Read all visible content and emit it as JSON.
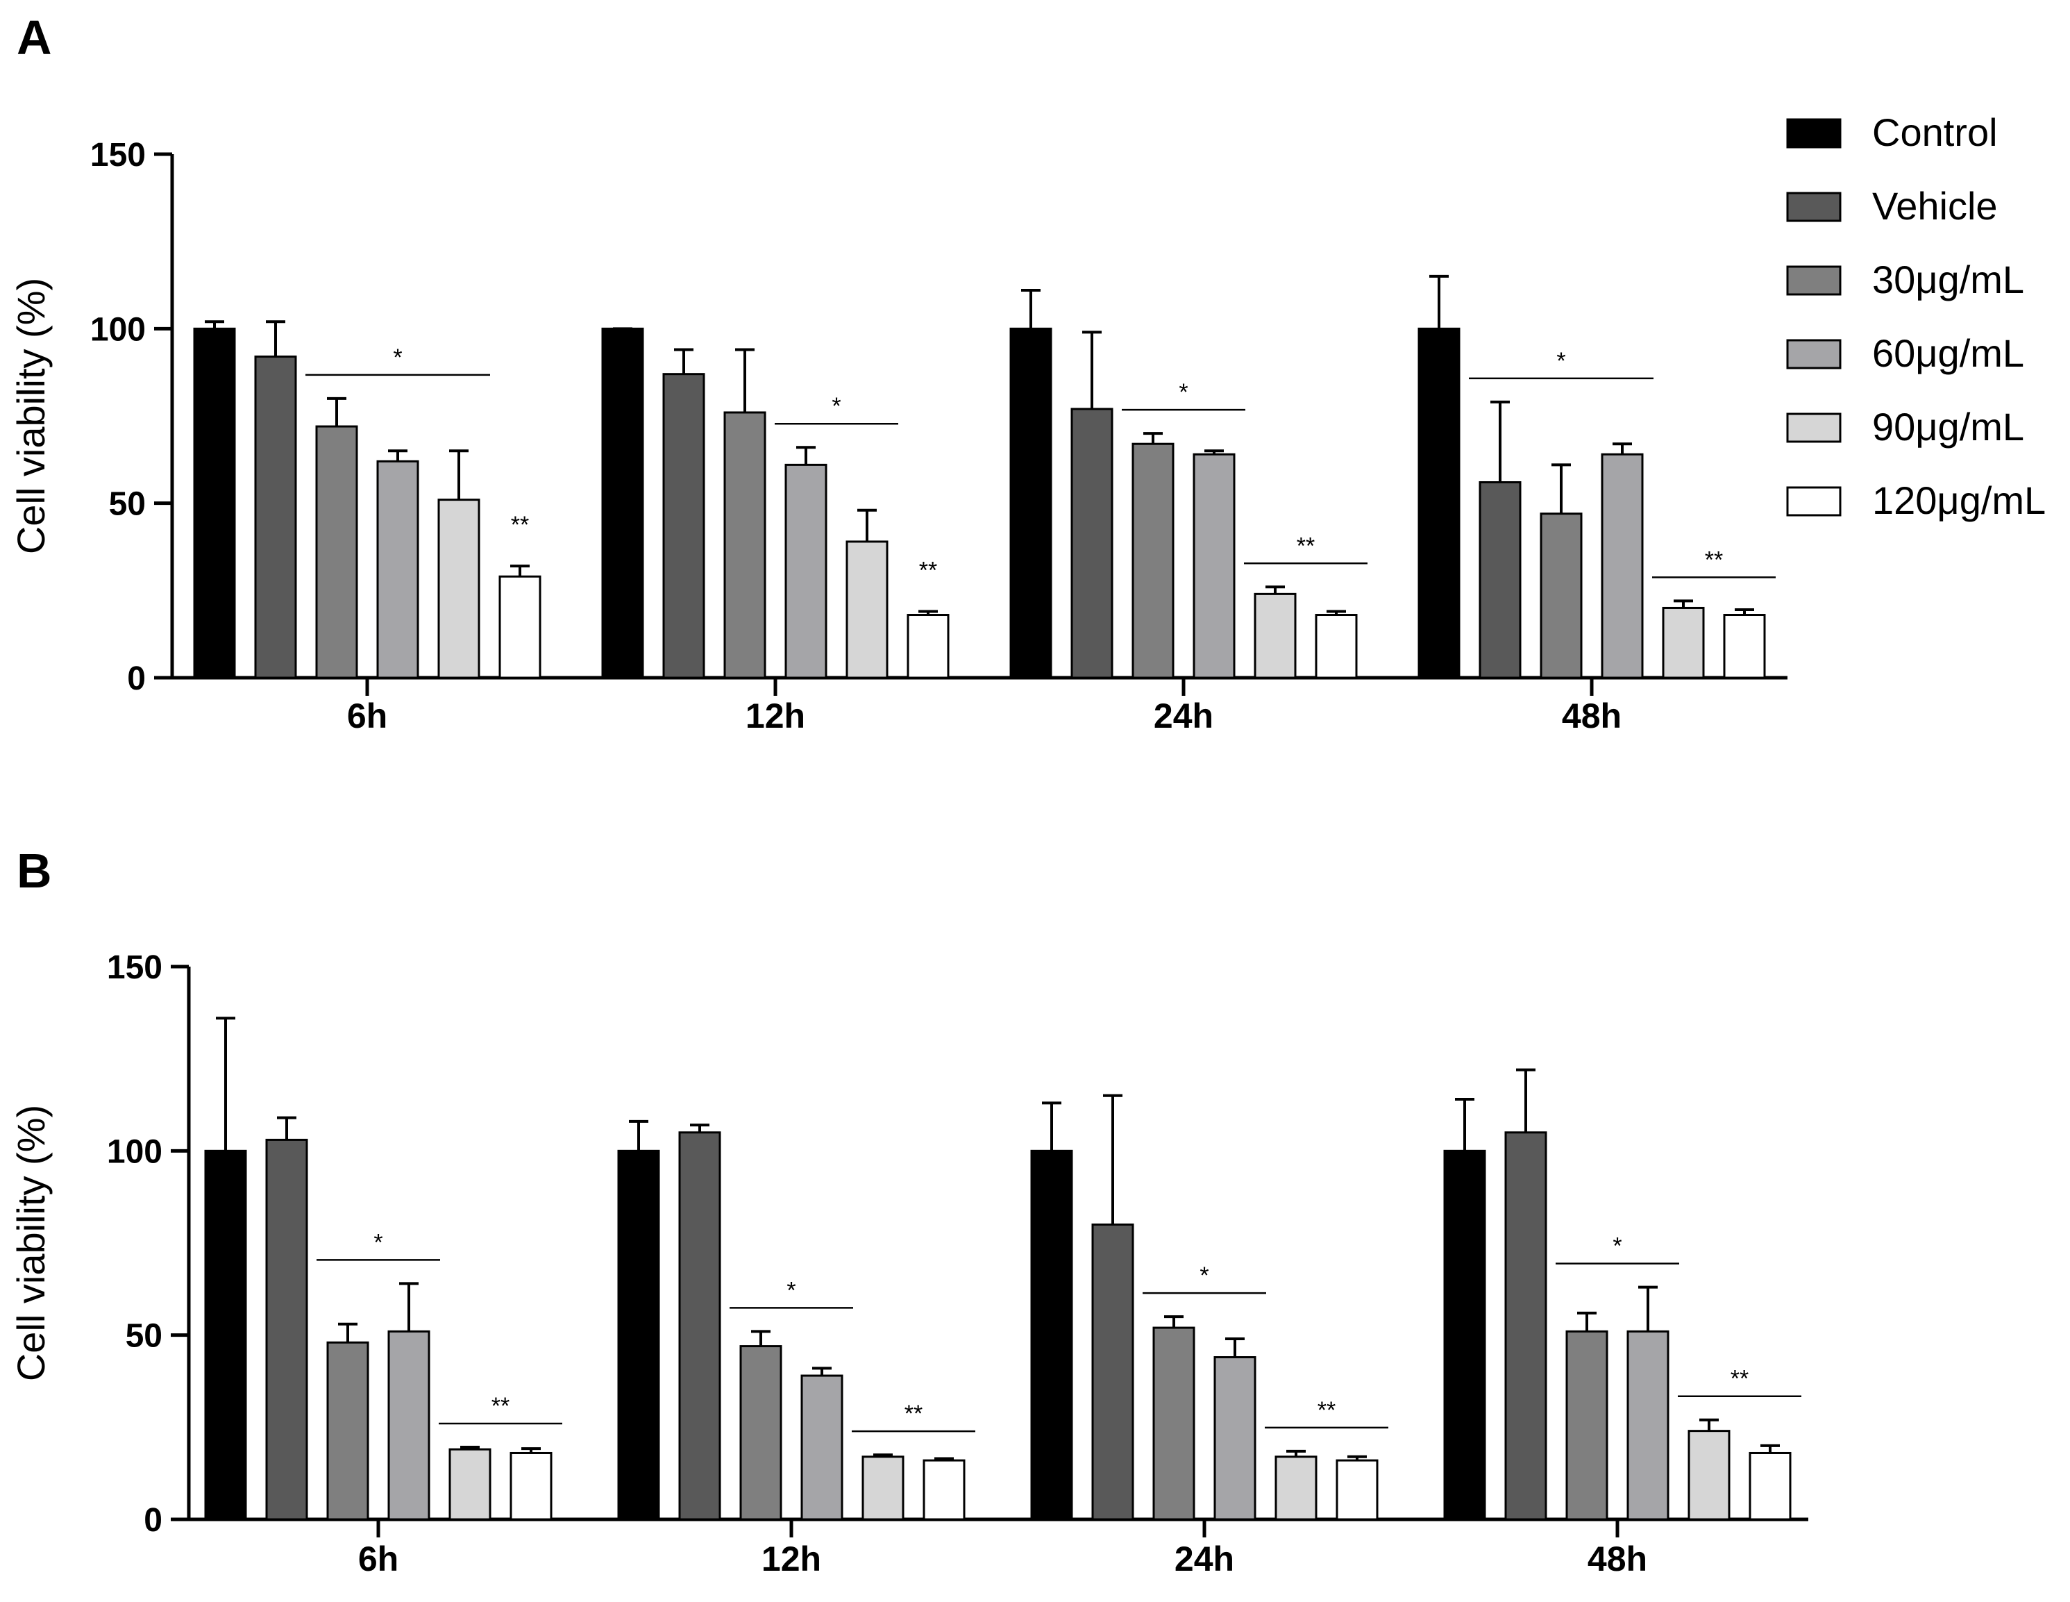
{
  "chart_data": [
    {
      "panel": "A",
      "type": "bar",
      "title": "",
      "xlabel": "",
      "ylabel": "Cell viability (%)",
      "ylim": [
        0,
        150
      ],
      "yticks": [
        0,
        50,
        100,
        150
      ],
      "categories": [
        "6h",
        "12h",
        "24h",
        "48h"
      ],
      "legend_position": "top-right",
      "series": [
        {
          "name": "Control",
          "color": "#000000",
          "values": [
            100,
            100,
            100,
            100
          ],
          "errors": [
            2,
            0,
            11,
            15
          ]
        },
        {
          "name": "Vehicle",
          "color": "#595959",
          "values": [
            92,
            87,
            77,
            56
          ],
          "errors": [
            10,
            7,
            22,
            23
          ]
        },
        {
          "name": "30μg/mL",
          "color": "#7f7f7f",
          "values": [
            72,
            76,
            67,
            47
          ],
          "errors": [
            8,
            18,
            3,
            14
          ]
        },
        {
          "name": "60μg/mL",
          "color": "#a5a5a8",
          "values": [
            62,
            61,
            64,
            64
          ],
          "errors": [
            3,
            5,
            1,
            3
          ]
        },
        {
          "name": "90μg/mL",
          "color": "#d6d6d6",
          "values": [
            51,
            39,
            24,
            20
          ],
          "errors": [
            14,
            9,
            2,
            2
          ]
        },
        {
          "name": "120μg/mL",
          "color": "#ffffff",
          "values": [
            29,
            18,
            18,
            18
          ],
          "errors": [
            3,
            1,
            1,
            1.5
          ]
        }
      ],
      "annotations": [
        {
          "label": "*",
          "category": "6h",
          "from": 2,
          "to": 4
        },
        {
          "label": "**",
          "category": "6h",
          "from": 5,
          "to": 5
        },
        {
          "label": "*",
          "category": "12h",
          "from": 3,
          "to": 4
        },
        {
          "label": "**",
          "category": "12h",
          "from": 5,
          "to": 5
        },
        {
          "label": "*",
          "category": "24h",
          "from": 2,
          "to": 3
        },
        {
          "label": "**",
          "category": "24h",
          "from": 4,
          "to": 5
        },
        {
          "label": "*",
          "category": "48h",
          "from": 1,
          "to": 3
        },
        {
          "label": "**",
          "category": "48h",
          "from": 4,
          "to": 5
        }
      ]
    },
    {
      "panel": "B",
      "type": "bar",
      "title": "",
      "xlabel": "",
      "ylabel": "Cell viability (%)",
      "ylim": [
        0,
        150
      ],
      "yticks": [
        0,
        50,
        100,
        150
      ],
      "categories": [
        "6h",
        "12h",
        "24h",
        "48h"
      ],
      "series": [
        {
          "name": "Control",
          "color": "#000000",
          "values": [
            100,
            100,
            100,
            100
          ],
          "errors": [
            36,
            8,
            13,
            14
          ]
        },
        {
          "name": "Vehicle",
          "color": "#595959",
          "values": [
            103,
            105,
            80,
            105
          ],
          "errors": [
            6,
            2,
            35,
            17
          ]
        },
        {
          "name": "30μg/mL",
          "color": "#7f7f7f",
          "values": [
            48,
            47,
            52,
            51
          ],
          "errors": [
            5,
            4,
            3,
            5
          ]
        },
        {
          "name": "60μg/mL",
          "color": "#a5a5a8",
          "values": [
            51,
            39,
            44,
            51
          ],
          "errors": [
            13,
            2,
            5,
            12
          ]
        },
        {
          "name": "90μg/mL",
          "color": "#d6d6d6",
          "values": [
            19,
            17,
            17,
            24
          ],
          "errors": [
            0.6,
            0.5,
            1.5,
            3
          ]
        },
        {
          "name": "120μg/mL",
          "color": "#ffffff",
          "values": [
            18,
            16,
            16,
            18
          ],
          "errors": [
            1.2,
            0.5,
            1,
            2
          ]
        }
      ],
      "annotations": [
        {
          "label": "*",
          "category": "6h",
          "from": 2,
          "to": 3
        },
        {
          "label": "**",
          "category": "6h",
          "from": 4,
          "to": 5
        },
        {
          "label": "*",
          "category": "12h",
          "from": 2,
          "to": 3
        },
        {
          "label": "**",
          "category": "12h",
          "from": 4,
          "to": 5
        },
        {
          "label": "*",
          "category": "24h",
          "from": 2,
          "to": 3
        },
        {
          "label": "**",
          "category": "24h",
          "from": 4,
          "to": 5
        },
        {
          "label": "*",
          "category": "48h",
          "from": 2,
          "to": 3
        },
        {
          "label": "**",
          "category": "48h",
          "from": 4,
          "to": 5
        }
      ]
    }
  ]
}
